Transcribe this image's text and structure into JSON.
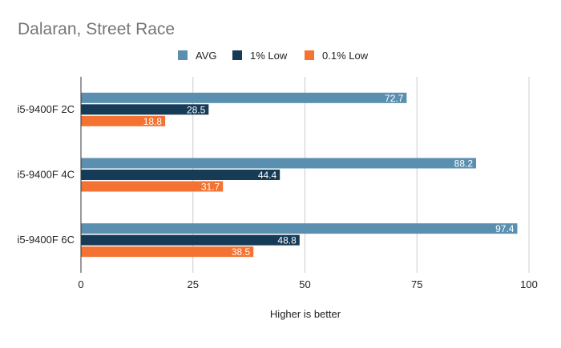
{
  "chart_data": {
    "type": "bar",
    "orientation": "horizontal",
    "title": "Dalaran, Street Race",
    "xlabel": "Higher is better",
    "ylabel": "",
    "categories": [
      "i5-9400F 2C",
      "i5-9400F 4C",
      "i5-9400F 6C"
    ],
    "series": [
      {
        "name": "AVG",
        "color": "#5b8fb0",
        "values": [
          72.7,
          88.2,
          97.4
        ]
      },
      {
        "name": "1% Low",
        "color": "#163b57",
        "values": [
          28.5,
          44.4,
          48.8
        ]
      },
      {
        "name": "0.1% Low",
        "color": "#f47332",
        "values": [
          18.8,
          31.7,
          38.5
        ]
      }
    ],
    "xlim": [
      0,
      100
    ],
    "xticks": [
      0,
      25,
      50,
      75,
      100
    ],
    "grid": "vertical",
    "legend": "top-center",
    "data_labels": true
  }
}
